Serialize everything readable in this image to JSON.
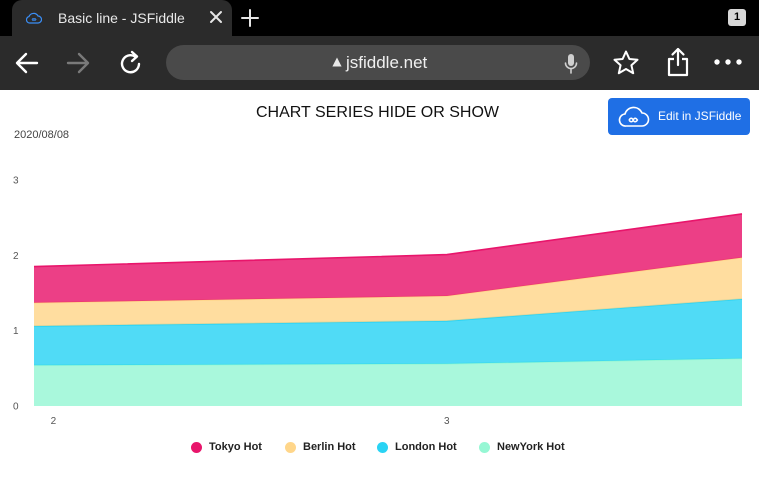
{
  "browser": {
    "tab_title": "Basic line - JSFiddle",
    "tab_count": "1",
    "url": "jsfiddle.net"
  },
  "page": {
    "edit_button_label": "Edit in JSFiddle"
  },
  "colors": {
    "accent": "#1f6fe5",
    "tokyo": "#e8156b",
    "berlin": "#ffd68a",
    "london": "#29d3f4",
    "newyork": "#96f7d4"
  },
  "chart_data": {
    "type": "area",
    "stacked": true,
    "title": "CHART SERIES HIDE OR SHOW",
    "subtitle": "2020/08/08",
    "x": [
      1.95,
      3.0,
      3.75
    ],
    "x_tick_labels": [
      "2",
      "3"
    ],
    "y_tick_labels": [
      "0",
      "1",
      "2",
      "3"
    ],
    "ylim": [
      0,
      3
    ],
    "legend_position": "bottom",
    "series": [
      {
        "name": "Tokyo Hot",
        "color": "#e8156b",
        "values": [
          0.48,
          0.55,
          0.58
        ]
      },
      {
        "name": "Berlin Hot",
        "color": "#ffd68a",
        "values": [
          0.31,
          0.33,
          0.55
        ]
      },
      {
        "name": "London Hot",
        "color": "#29d3f4",
        "values": [
          0.52,
          0.57,
          0.79
        ]
      },
      {
        "name": "NewYork Hot",
        "color": "#96f7d4",
        "values": [
          0.54,
          0.56,
          0.63
        ]
      }
    ]
  }
}
